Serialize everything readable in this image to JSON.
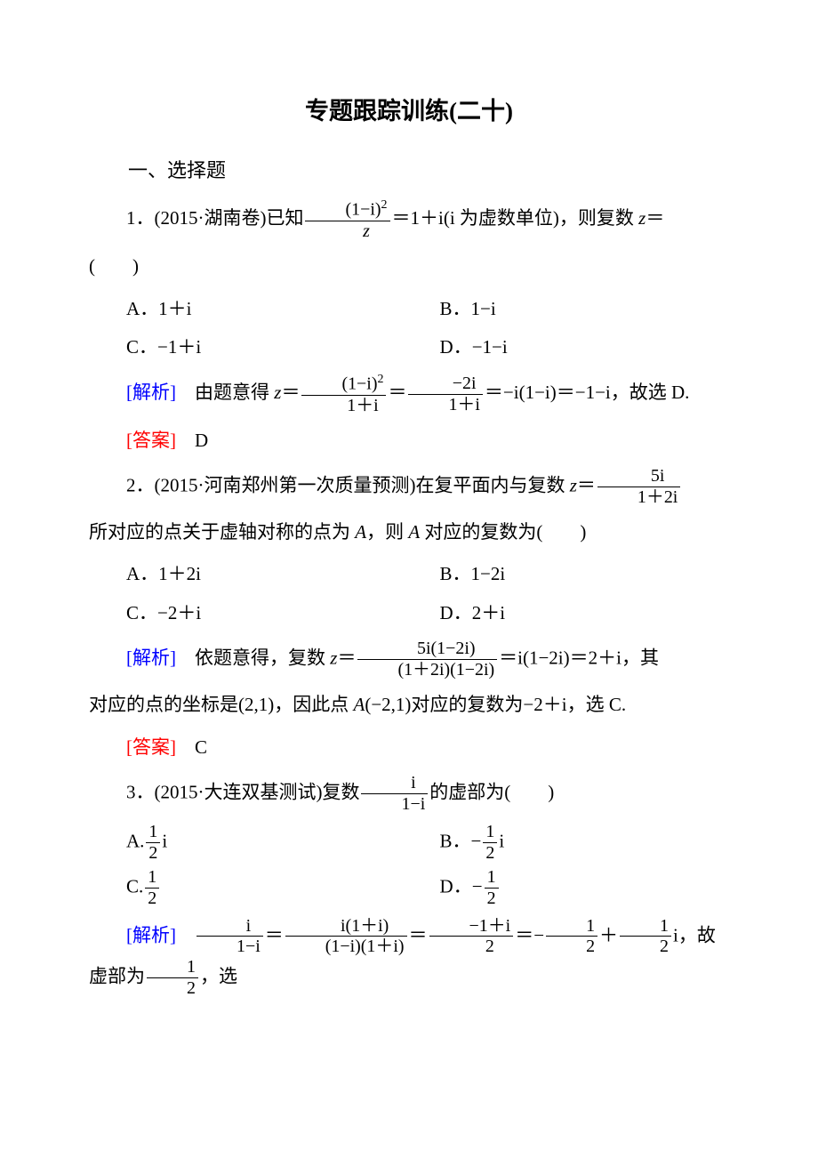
{
  "title": "专题跟踪训练(二十)",
  "section1": "一、选择题",
  "q1": {
    "stem_a": "1．(2015·湖南卷)已知",
    "frac_num": "(1−i)",
    "frac_num_sup": "2",
    "frac_den": "z",
    "stem_b": "＝1＋i(i 为虚数单位)，则复数 ",
    "stem_c": "＝",
    "paren": "(　　)",
    "A": "A．1＋i",
    "B": "B．1−i",
    "C": "C．−1＋i",
    "D": "D．−1−i",
    "analysis_label": "[解析]",
    "an_a": "　由题意得 ",
    "an_b": "＝",
    "f1n": "(1−i)",
    "f1n_sup": "2",
    "f1d": "1＋i",
    "an_c": "＝",
    "f2n": "−2i",
    "f2d": "1＋i",
    "an_d": "＝−i(1−i)＝−1−i，故选 D.",
    "answer_label": "[答案]",
    "answer": "　D"
  },
  "q2": {
    "stem_a": "2．(2015·河南郑州第一次质量预测)在复平面内与复数 ",
    "stem_b": "＝",
    "fn": "5i",
    "fd": "1＋2i",
    "stem_c": "所对应的点关于虚轴对称的点为",
    "stem_d": "，则",
    "stem_e": " 对应的复数为(　　)",
    "A": "A．1＋2i",
    "B": "B．1−2i",
    "C": "C．−2＋i",
    "D": "D．2＋i",
    "analysis_label": "[解析]",
    "an_a": "　依题意得，复数 ",
    "an_b": "＝",
    "f1n": "5i(1−2i)",
    "f1d": "(1＋2i)(1−2i)",
    "an_c": "＝i(1−2i)＝2＋i，其",
    "an_d": "对应的点的坐标是(2,1)，因此点",
    "an_e": "(−2,1)对应的复数为−2＋i，选 C.",
    "answer_label": "[答案]",
    "answer": "　C"
  },
  "q3": {
    "stem_a": "3．(2015·大连双基测试)复数",
    "fn": "i",
    "fd": "1−i",
    "stem_b": "的虚部为(　　)",
    "A_pre": "A.",
    "A_num": "1",
    "A_den": "2",
    "A_suf": "i",
    "B_pre": "B．−",
    "B_num": "1",
    "B_den": "2",
    "B_suf": "i",
    "C_pre": "C.",
    "C_num": "1",
    "C_den": "2",
    "D_pre": "D．−",
    "D_num": "1",
    "D_den": "2",
    "analysis_label": "[解析]",
    "f1n": "i",
    "f1d": "1−i",
    "an_a": "＝",
    "f2n": "i(1＋i)",
    "f2d": "(1−i)(1＋i)",
    "an_b": "＝",
    "f3n": "−1＋i",
    "f3d": "2",
    "an_c": "＝−",
    "f4n": "1",
    "f4d": "2",
    "an_d": "＋",
    "f5n": "1",
    "f5d": "2",
    "an_e": "i，故虚部为",
    "f6n": "1",
    "f6d": "2",
    "an_f": "，选"
  }
}
